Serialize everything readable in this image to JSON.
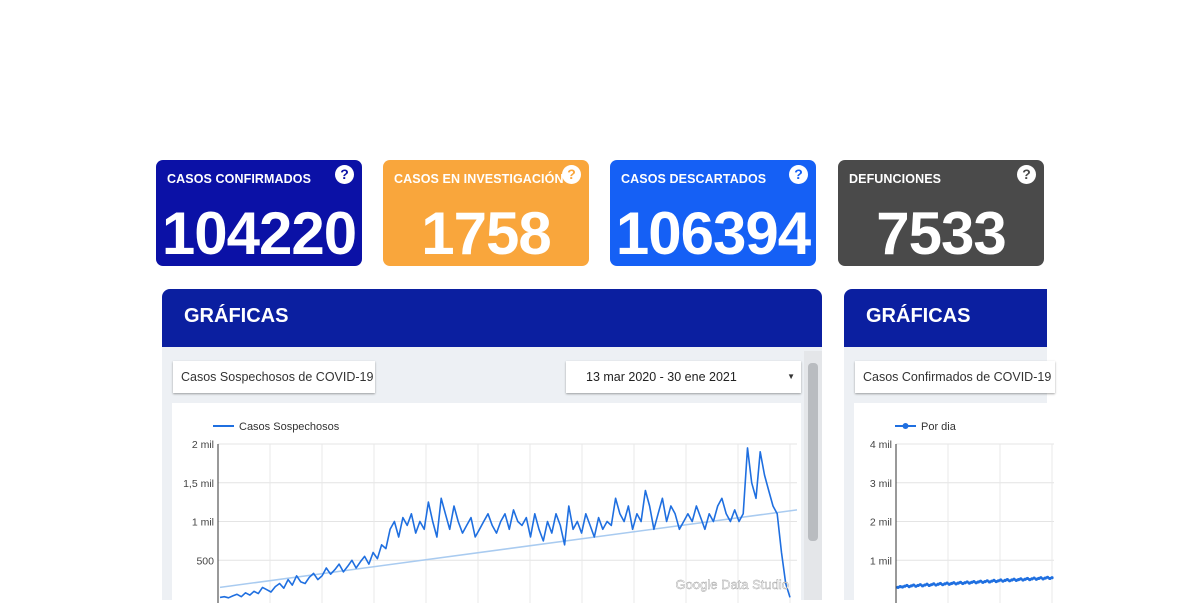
{
  "stats": [
    {
      "label": "CASOS CONFIRMADOS",
      "value": "104220",
      "color": "#0b11a6"
    },
    {
      "label": "CASOS EN INVESTIGACIÓN",
      "value": "1758",
      "color": "#f9a63c"
    },
    {
      "label": "CASOS DESCARTADOS",
      "value": "106394",
      "color": "#1560f5"
    },
    {
      "label": "DEFUNCIONES",
      "value": "7533",
      "color": "#4a4a4a"
    }
  ],
  "help_glyph": "?",
  "panels": [
    {
      "title": "GRÁFICAS",
      "chart_selector": "Casos Sospechosos de COVID-19",
      "date_range": "13 mar 2020 - 30 ene 2021",
      "watermark": "Google Data Studio"
    },
    {
      "title": "GRÁFICAS",
      "chart_selector": "Casos Confirmados de COVID-19"
    }
  ],
  "chart_data": [
    {
      "type": "line",
      "legend": [
        "Casos Sospechosos"
      ],
      "legend_position": "top-left",
      "yticks": [
        "2 mil",
        "1,5 mil",
        "1 mil",
        "500"
      ],
      "ylim": [
        0,
        2000
      ],
      "grid": true,
      "series": [
        {
          "name": "Casos Sospechosos",
          "color": "#1f6fe0",
          "values": [
            20,
            30,
            15,
            40,
            60,
            30,
            80,
            50,
            100,
            70,
            150,
            120,
            90,
            160,
            200,
            140,
            250,
            180,
            300,
            220,
            200,
            280,
            330,
            250,
            300,
            400,
            320,
            380,
            450,
            350,
            420,
            500,
            400,
            480,
            550,
            450,
            600,
            520,
            700,
            650,
            900,
            1000,
            800,
            1050,
            950,
            1100,
            850,
            1000,
            900,
            1250,
            1000,
            800,
            1300,
            1100,
            900,
            1200,
            1000,
            850,
            950,
            1050,
            800,
            900,
            1000,
            1100,
            950,
            850,
            1000,
            1100,
            900,
            1150,
            1000,
            950,
            1050,
            800,
            1100,
            900,
            750,
            1000,
            850,
            1100,
            950,
            700,
            1200,
            900,
            1000,
            850,
            1100,
            950,
            800,
            1050,
            900,
            1000,
            950,
            1300,
            1100,
            1000,
            1200,
            900,
            1100,
            1000,
            1400,
            1200,
            900,
            1100,
            1300,
            1000,
            1200,
            1100,
            900,
            1000,
            1100,
            1000,
            1200,
            1050,
            900,
            1100,
            1000,
            1200,
            1300,
            1100,
            1000,
            1150,
            1000,
            1100,
            1950,
            1500,
            1300,
            1900,
            1600,
            1400,
            1200,
            1100,
            600,
            200,
            20
          ],
          "trend": [
            150,
            1150
          ]
        }
      ]
    },
    {
      "type": "line",
      "legend": [
        "Por dia"
      ],
      "legend_position": "top-left",
      "yticks": [
        "4 mil",
        "3 mil",
        "2 mil",
        "1 mil"
      ],
      "ylim": [
        0,
        4000
      ],
      "grid": true,
      "series": [
        {
          "name": "Por dia",
          "color": "#1f6fe0",
          "values": [
            300,
            320,
            310,
            330,
            350,
            320,
            340,
            360,
            330,
            350,
            370,
            340,
            360,
            380,
            350,
            370,
            390,
            360,
            380,
            400,
            370,
            390,
            410,
            380,
            400,
            420,
            390,
            410,
            430,
            400,
            420,
            440,
            410,
            430,
            450,
            420,
            440,
            460,
            430,
            450,
            470,
            440,
            460,
            480,
            450,
            470,
            490,
            460,
            480,
            500,
            470,
            490,
            510,
            480,
            500,
            520,
            490,
            510,
            530,
            500,
            520,
            540,
            510,
            530,
            550,
            520,
            540,
            560,
            530,
            550
          ]
        }
      ]
    }
  ]
}
